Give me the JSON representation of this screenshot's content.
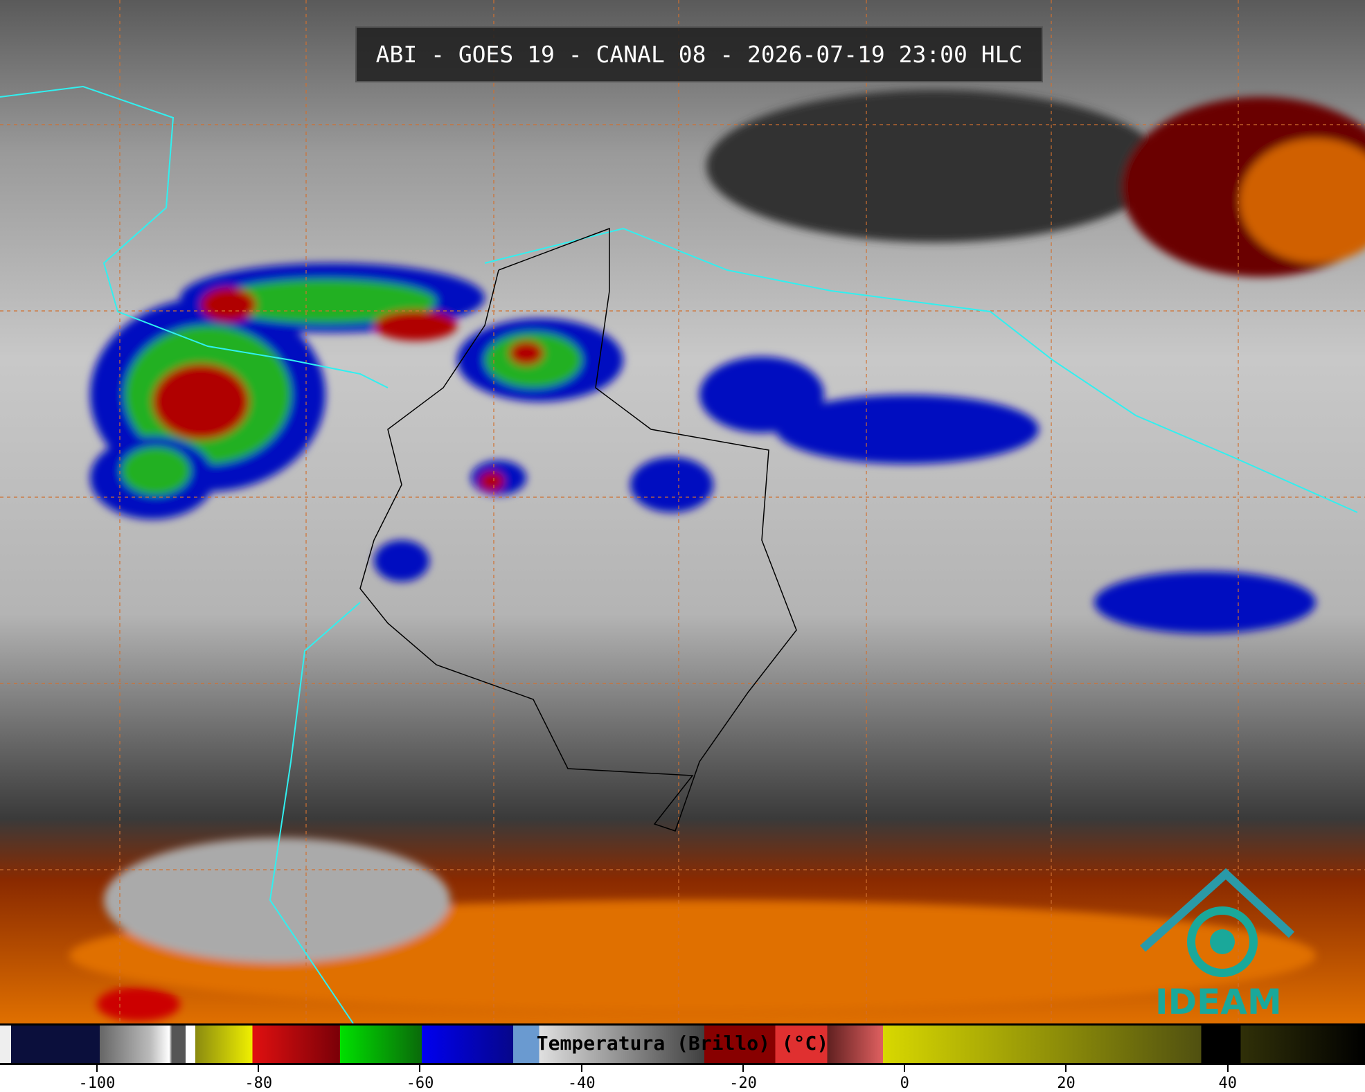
{
  "header": {
    "title": "ABI - GOES 19 - CANAL 08 - 2026-07-19 23:00 HLC"
  },
  "colorbar": {
    "label": "Temperatura (Brillo) (°C)",
    "lim": [
      -112,
      57
    ],
    "ticks": [
      -100,
      -80,
      -60,
      -40,
      -20,
      0,
      20,
      40
    ]
  },
  "logo": {
    "text": "IDEAM"
  }
}
